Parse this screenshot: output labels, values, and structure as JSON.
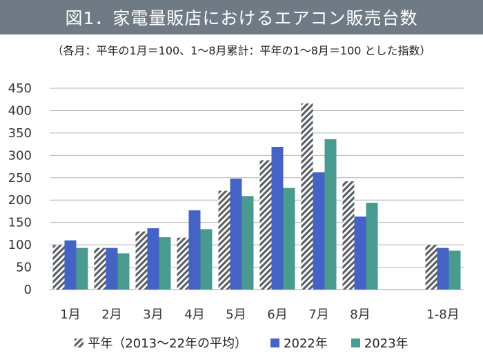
{
  "title": "図1．家電量販店におけるエアコン販売台数",
  "subtitle": "（各月：平年の1月＝100、1～8月累計：平年の1～8月＝100 とした指数）",
  "chart_data": {
    "type": "bar",
    "categories": [
      "1月",
      "2月",
      "3月",
      "4月",
      "5月",
      "6月",
      "7月",
      "8月",
      "",
      "1-8月"
    ],
    "series": [
      {
        "name": "平年（2013～22年の平均）",
        "color": "#5a5f66",
        "pattern": "hatched",
        "values": [
          100,
          93,
          130,
          116,
          221,
          289,
          416,
          242,
          null,
          100
        ]
      },
      {
        "name": "2022年",
        "color": "#4563c4",
        "pattern": "solid",
        "values": [
          110,
          93,
          137,
          177,
          248,
          319,
          262,
          163,
          null,
          93
        ]
      },
      {
        "name": "2023年",
        "color": "#4a9b8f",
        "pattern": "solid",
        "values": [
          93,
          81,
          117,
          135,
          209,
          227,
          336,
          194,
          null,
          87
        ]
      }
    ],
    "ylim": [
      0,
      450
    ],
    "yticks": [
      0,
      50,
      100,
      150,
      200,
      250,
      300,
      350,
      400,
      450
    ],
    "grid": true,
    "legend": "bottom"
  }
}
